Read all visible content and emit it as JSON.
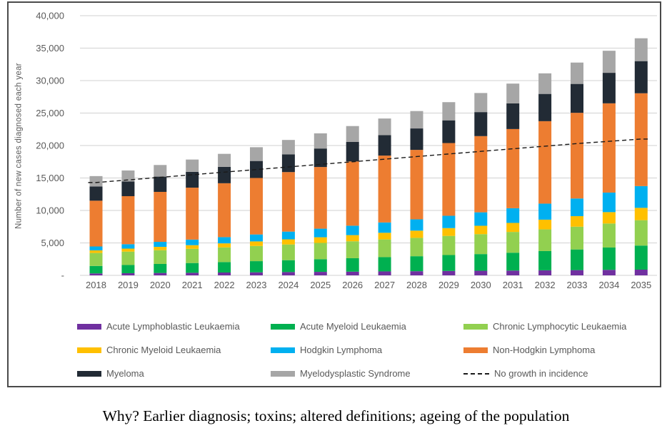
{
  "chart_data": {
    "type": "bar",
    "stacked": true,
    "title": "",
    "xlabel": "",
    "ylabel": "Number of new cases diagnosed each year",
    "ylim": [
      0,
      40000
    ],
    "grid": true,
    "legend_position": "bottom",
    "y_ticks": [
      {
        "value": 0,
        "label": "-"
      },
      {
        "value": 5000,
        "label": "5,000"
      },
      {
        "value": 10000,
        "label": "10,000"
      },
      {
        "value": 15000,
        "label": "15,000"
      },
      {
        "value": 20000,
        "label": "20,000"
      },
      {
        "value": 25000,
        "label": "25,000"
      },
      {
        "value": 30000,
        "label": "30,000"
      },
      {
        "value": 35000,
        "label": "35,000"
      },
      {
        "value": 40000,
        "label": "40,000"
      }
    ],
    "categories": [
      "2018",
      "2019",
      "2020",
      "2021",
      "2022",
      "2023",
      "2024",
      "2025",
      "2026",
      "2027",
      "2028",
      "2029",
      "2030",
      "2031",
      "2032",
      "2033",
      "2034",
      "2035"
    ],
    "series": [
      {
        "name": "Acute Lymphoblastic Leukaemia",
        "color": "#7030A0",
        "values": [
          300,
          330,
          370,
          400,
          440,
          470,
          510,
          540,
          570,
          610,
          640,
          680,
          710,
          740,
          780,
          810,
          850,
          880
        ]
      },
      {
        "name": "Acute Myeloid Leukaemia",
        "color": "#00B050",
        "values": [
          1150,
          1270,
          1390,
          1500,
          1610,
          1720,
          1830,
          1950,
          2070,
          2200,
          2310,
          2450,
          2570,
          2750,
          2960,
          3180,
          3440,
          3710
        ]
      },
      {
        "name": "Chronic Lymphocytic Leukaemia",
        "color": "#92D050",
        "values": [
          2000,
          2060,
          2120,
          2190,
          2260,
          2340,
          2420,
          2510,
          2610,
          2720,
          2830,
          2950,
          3070,
          3200,
          3340,
          3510,
          3700,
          3910
        ]
      },
      {
        "name": "Chronic Myeloid Leukaemia",
        "color": "#FFC000",
        "values": [
          400,
          460,
          510,
          560,
          620,
          700,
          790,
          870,
          950,
          1030,
          1110,
          1200,
          1290,
          1390,
          1500,
          1620,
          1750,
          1900
        ]
      },
      {
        "name": "Hodgkin Lymphoma",
        "color": "#00B0F0",
        "values": [
          600,
          680,
          770,
          860,
          960,
          1070,
          1190,
          1320,
          1450,
          1590,
          1740,
          1900,
          2070,
          2260,
          2470,
          2720,
          3010,
          3350
        ]
      },
      {
        "name": "Non-Hodgkin Lymphoma",
        "color": "#ED7D31",
        "values": [
          7050,
          7400,
          7700,
          8000,
          8300,
          8700,
          9170,
          9500,
          9900,
          10300,
          10700,
          11200,
          11740,
          12200,
          12700,
          13200,
          13750,
          14300
        ]
      },
      {
        "name": "Myeloma",
        "color": "#222B35",
        "values": [
          2200,
          2270,
          2350,
          2430,
          2520,
          2620,
          2720,
          2850,
          3000,
          3150,
          3300,
          3500,
          3700,
          3950,
          4200,
          4450,
          4700,
          4950
        ]
      },
      {
        "name": "Myelodysplastic Syndrome",
        "color": "#A6A6A6",
        "values": [
          1590,
          1690,
          1790,
          1900,
          2010,
          2120,
          2230,
          2340,
          2450,
          2560,
          2680,
          2800,
          2940,
          3050,
          3170,
          3290,
          3400,
          3520
        ]
      }
    ],
    "line_series": {
      "name": "No growth in incidence",
      "color": "#1a1a1a",
      "style": "dashed",
      "values": [
        14300,
        14700,
        15100,
        15500,
        15900,
        16300,
        16700,
        17100,
        17500,
        17900,
        18300,
        18700,
        19100,
        19500,
        19900,
        20300,
        20650,
        21000
      ]
    }
  },
  "caption": {
    "text": "Why? Earlier diagnosis; toxins; altered definitions; ageing of the population"
  }
}
